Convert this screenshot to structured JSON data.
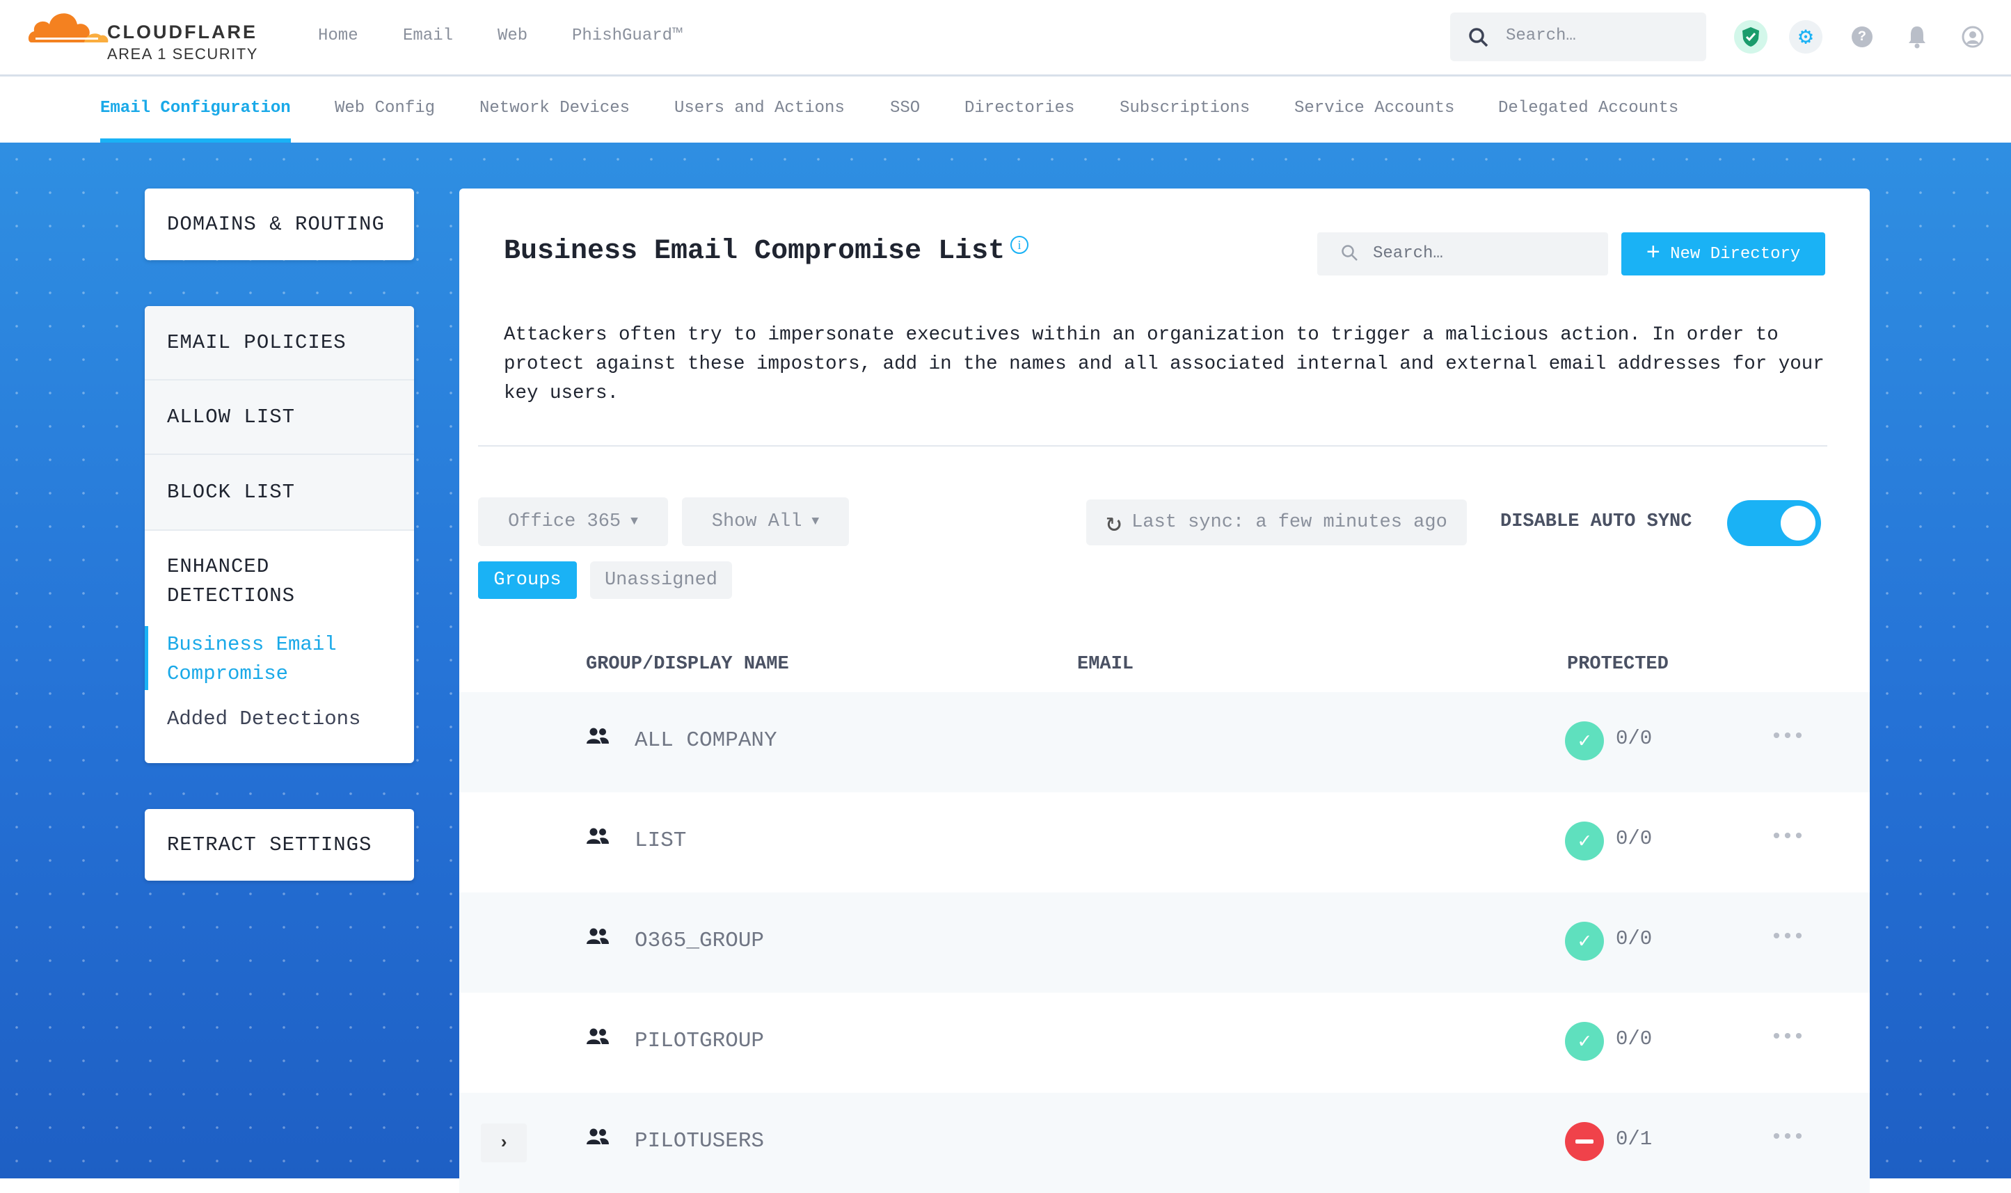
{
  "brand": {
    "name": "CLOUDFLARE",
    "sub": "AREA 1 SECURITY",
    "color": "#f48120"
  },
  "topnav": [
    {
      "label": "Home"
    },
    {
      "label": "Email"
    },
    {
      "label": "Web"
    },
    {
      "label": "PhishGuard™"
    }
  ],
  "header": {
    "search_placeholder": "Search…",
    "icons": [
      "shield-check-icon",
      "gear-icon",
      "help-icon",
      "bell-icon",
      "user-icon"
    ]
  },
  "subnav": [
    {
      "label": "Email Configuration",
      "active": true
    },
    {
      "label": "Web Config"
    },
    {
      "label": "Network Devices"
    },
    {
      "label": "Users and Actions"
    },
    {
      "label": "SSO"
    },
    {
      "label": "Directories"
    },
    {
      "label": "Subscriptions"
    },
    {
      "label": "Service Accounts"
    },
    {
      "label": "Delegated Accounts"
    }
  ],
  "sidebar": {
    "domains": "DOMAINS & ROUTING",
    "email_policies": "EMAIL POLICIES",
    "allow_list": "ALLOW LIST",
    "block_list": "BLOCK LIST",
    "enhanced": "ENHANCED DETECTIONS",
    "bec": "Business Email Compromise",
    "added": "Added Detections",
    "retract": "RETRACT SETTINGS"
  },
  "main": {
    "title": "Business Email Compromise List",
    "search_placeholder": "Search…",
    "new_button": "New Directory",
    "description": "Attackers often try to impersonate executives within an organization to trigger a malicious action. In order to protect against these impostors, add in the names and all associated internal and external email addresses for your key users.",
    "source_select": "Office 365",
    "filter_select": "Show All",
    "last_sync": "Last sync: a few minutes ago",
    "auto_sync_label": "DISABLE AUTO SYNC",
    "auto_sync_on": true,
    "tabs": [
      {
        "label": "Groups",
        "active": true
      },
      {
        "label": "Unassigned"
      }
    ],
    "columns": [
      "GROUP/DISPLAY NAME",
      "EMAIL",
      "PROTECTED"
    ],
    "rows": [
      {
        "name": "ALL COMPANY",
        "protected": "0/0",
        "status": "ok"
      },
      {
        "name": "LIST",
        "protected": "0/0",
        "status": "ok"
      },
      {
        "name": "O365_GROUP",
        "protected": "0/0",
        "status": "ok"
      },
      {
        "name": "PILOTGROUP",
        "protected": "0/0",
        "status": "ok"
      },
      {
        "name": "PILOTUSERS",
        "protected": "0/1",
        "status": "blocked",
        "expandable": true
      }
    ],
    "colors": {
      "accent": "#1ab2f5",
      "ok": "#5fe0be",
      "blocked": "#f0424a"
    }
  }
}
